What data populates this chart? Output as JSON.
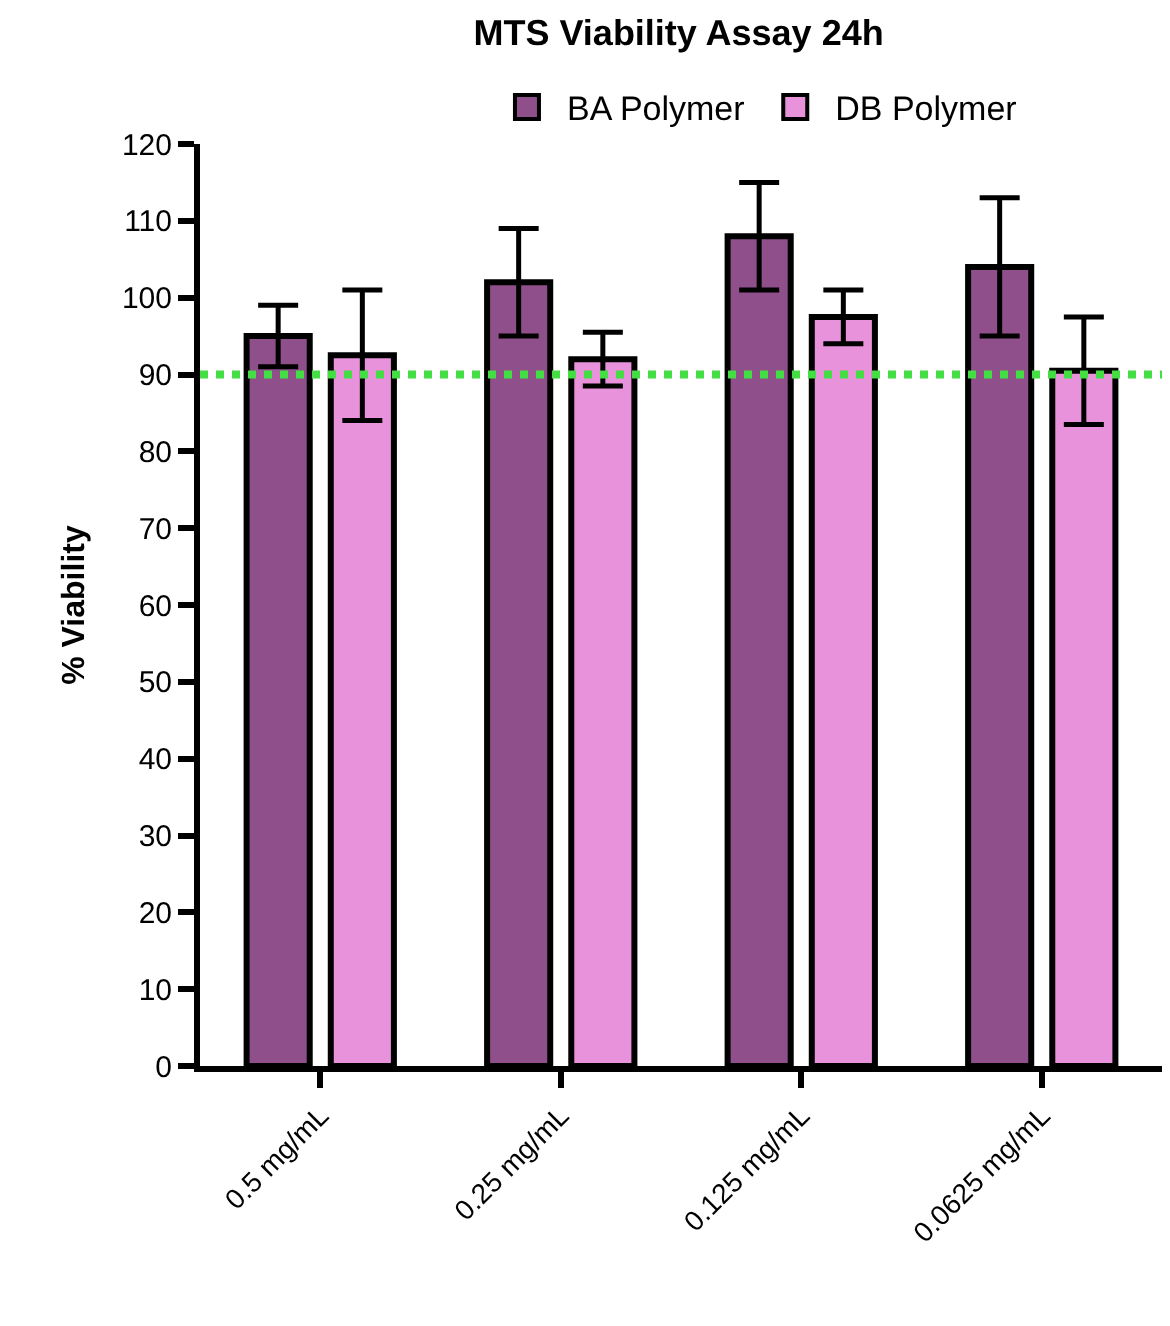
{
  "chart_data": {
    "type": "bar",
    "title": "MTS Viability Assay 24h",
    "ylabel": "% Viability",
    "categories": [
      "0.5 mg/mL",
      "0.25 mg/mL",
      "0.125 mg/mL",
      "0.0625 mg/mL"
    ],
    "series": [
      {
        "name": "BA Polymer",
        "color": "#8e4f8a",
        "values": [
          95,
          102,
          108,
          104
        ],
        "errors": [
          4,
          7,
          7,
          9
        ]
      },
      {
        "name": "DB Polymer",
        "color": "#e892dc",
        "values": [
          92.5,
          92,
          97.5,
          90.5
        ],
        "errors": [
          8.5,
          3.5,
          3.5,
          7
        ]
      }
    ],
    "ylim": [
      0,
      120
    ],
    "yticks": [
      0,
      10,
      20,
      30,
      40,
      50,
      60,
      70,
      80,
      90,
      100,
      110,
      120
    ],
    "ref_lines": [
      {
        "axis": "y",
        "value": 90,
        "color": "#44dd44",
        "line_style": "dotted"
      }
    ],
    "legend": "top"
  }
}
